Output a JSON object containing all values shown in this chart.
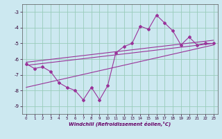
{
  "xlabel": "Windchill (Refroidissement éolien,°C)",
  "background_color": "#cce8f0",
  "grid_color": "#99ccbb",
  "line_color": "#993399",
  "hours": [
    0,
    1,
    2,
    3,
    4,
    5,
    6,
    7,
    8,
    9,
    10,
    11,
    12,
    13,
    14,
    15,
    16,
    17,
    18,
    19,
    20,
    21,
    22,
    23
  ],
  "windchill": [
    -6.3,
    -6.6,
    -6.5,
    -6.8,
    -7.5,
    -7.8,
    -8.0,
    -8.6,
    -7.8,
    -8.6,
    -7.7,
    -5.6,
    -5.2,
    -5.0,
    -3.9,
    -4.1,
    -3.2,
    -3.7,
    -4.2,
    -5.1,
    -4.6,
    -5.1,
    -5.0,
    -5.0
  ],
  "ylim": [
    -9.5,
    -2.5
  ],
  "xlim": [
    -0.5,
    23.5
  ],
  "yticks": [
    -9,
    -8,
    -7,
    -6,
    -5,
    -4,
    -3
  ],
  "xticks": [
    0,
    1,
    2,
    3,
    4,
    5,
    6,
    7,
    8,
    9,
    10,
    11,
    12,
    13,
    14,
    15,
    16,
    17,
    18,
    19,
    20,
    21,
    22,
    23
  ],
  "trend1": [
    -6.2,
    -4.8
  ],
  "trend2": [
    -6.4,
    -5.0
  ],
  "trend3": [
    -7.8,
    -5.1
  ]
}
